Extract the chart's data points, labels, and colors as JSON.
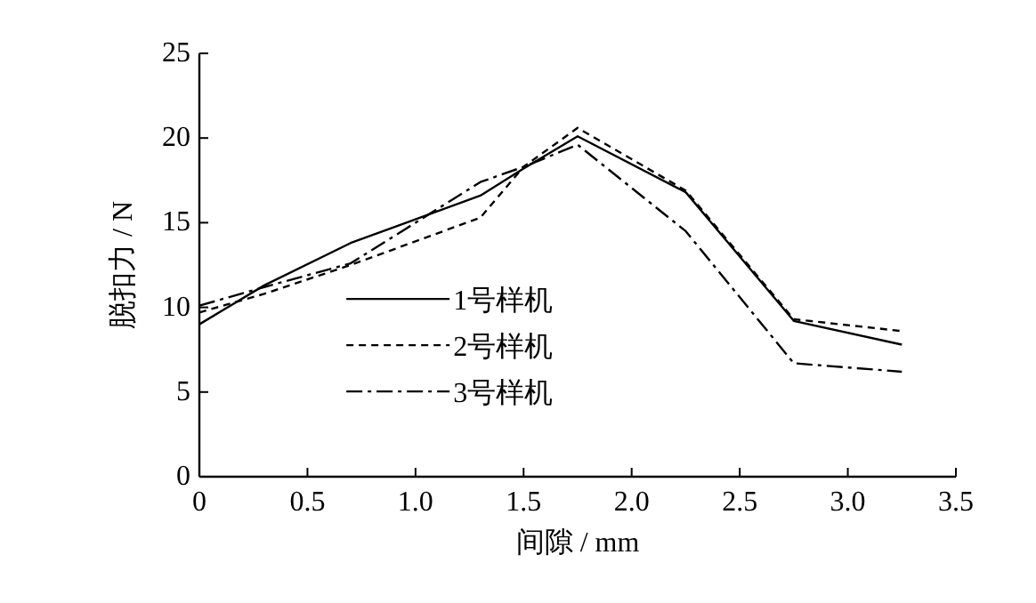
{
  "chart_data": {
    "type": "line",
    "xlabel": "间隙 / mm",
    "ylabel": "脱扣力 / N",
    "x": [
      0,
      0.3,
      0.7,
      1.3,
      1.5,
      1.75,
      2.25,
      2.75,
      3.25
    ],
    "series": [
      {
        "name": "1号样机",
        "color": "#000000",
        "line_style": "solid",
        "values": [
          9.0,
          11.3,
          13.8,
          16.6,
          18.2,
          20.1,
          16.8,
          9.2,
          7.8
        ]
      },
      {
        "name": "2号样机",
        "color": "#000000",
        "line_style": "dashed",
        "values": [
          9.7,
          10.8,
          12.5,
          15.3,
          18.3,
          20.6,
          16.9,
          9.3,
          8.6
        ]
      },
      {
        "name": "3号样机",
        "color": "#000000",
        "line_style": "dashdot",
        "values": [
          10.1,
          11.2,
          12.6,
          17.4,
          18.3,
          19.6,
          14.5,
          6.7,
          6.2
        ]
      }
    ],
    "xlim": [
      0,
      3.5
    ],
    "ylim": [
      0,
      25
    ],
    "xticks": [
      0,
      0.5,
      {
        "value": 1,
        "label": "1.0"
      },
      1.5,
      {
        "value": 2,
        "label": "2.0"
      },
      2.5,
      {
        "value": 3,
        "label": "3.0"
      },
      3.5
    ],
    "yticks": [
      0,
      5,
      10,
      15,
      20,
      25
    ],
    "grid": false,
    "legend": "center",
    "marker": "none"
  }
}
